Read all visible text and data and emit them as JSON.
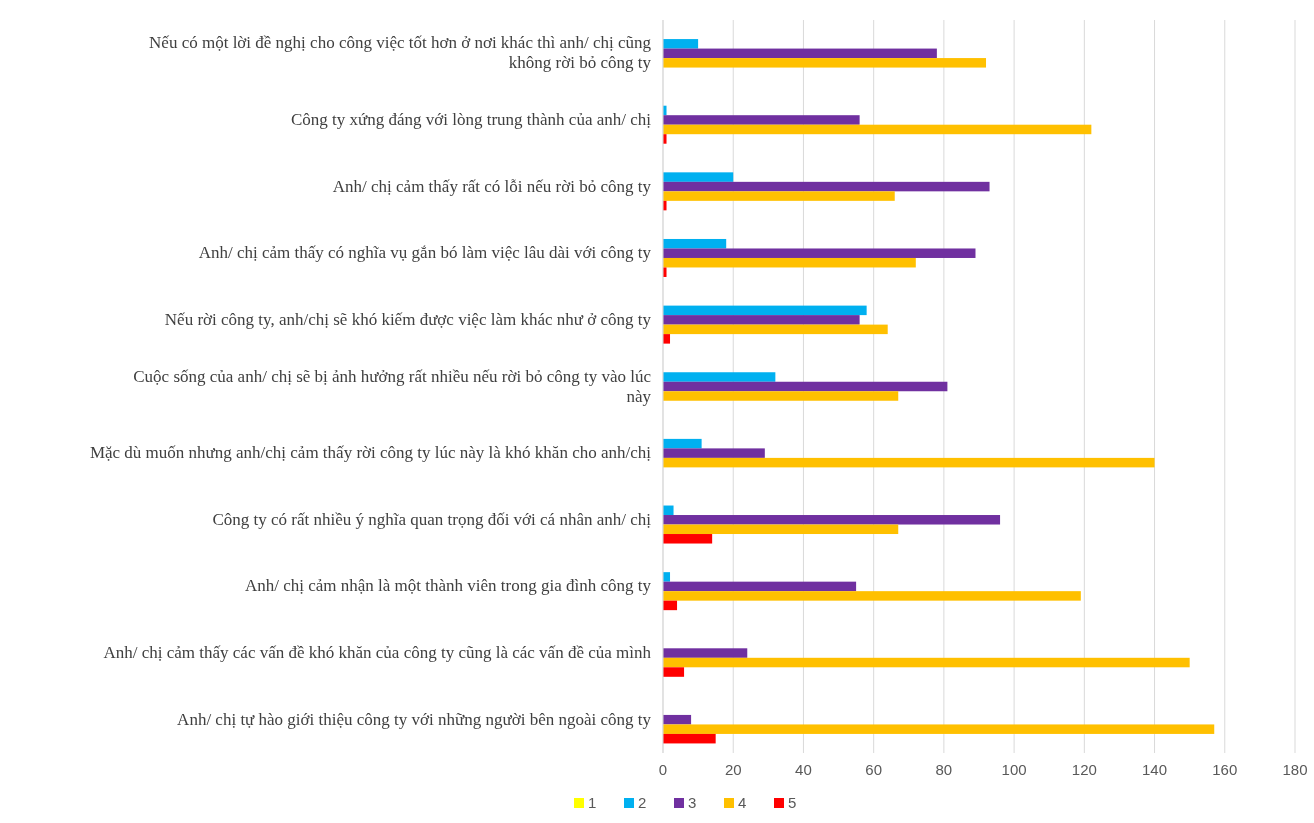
{
  "chart_data": {
    "type": "bar",
    "orientation": "horizontal",
    "categories": [
      "Nếu có một lời đề nghị cho công việc tốt hơn ở nơi khác thì anh/ chị cũng không rời bỏ công ty",
      "Công ty xứng đáng với lòng trung thành của anh/ chị",
      "Anh/ chị cảm thấy rất có lỗi nếu rời bỏ công ty",
      "Anh/ chị cảm thấy có nghĩa vụ gắn bó làm việc lâu dài với công ty",
      "Nếu rời công ty, anh/chị sẽ khó kiếm được việc làm khác như ở công ty",
      "Cuộc sống của anh/ chị sẽ bị ảnh hưởng rất nhiều nếu rời bỏ công ty vào lúc này",
      "Mặc dù muốn nhưng anh/chị cảm thấy rời công ty lúc này là khó khăn cho anh/chị",
      "Công ty có rất nhiều ý nghĩa quan trọng đối với cá nhân anh/ chị",
      "Anh/ chị cảm nhận là một thành viên trong gia đình công ty",
      "Anh/ chị cảm thấy các vấn đề khó khăn của công ty cũng là các vấn đề của mình",
      "Anh/ chị tự hào giới thiệu công ty với những người bên ngoài công ty"
    ],
    "series": [
      {
        "name": "1",
        "color": "#ffff00",
        "values": [
          0,
          0,
          0,
          0,
          0,
          0,
          0,
          0,
          0,
          0,
          0
        ]
      },
      {
        "name": "2",
        "color": "#00b0f0",
        "values": [
          10,
          1,
          20,
          18,
          58,
          32,
          11,
          3,
          2,
          0,
          0
        ]
      },
      {
        "name": "3",
        "color": "#7030a0",
        "values": [
          78,
          56,
          93,
          89,
          56,
          81,
          29,
          96,
          55,
          24,
          8
        ]
      },
      {
        "name": "4",
        "color": "#ffc000",
        "values": [
          92,
          122,
          66,
          72,
          64,
          67,
          140,
          67,
          119,
          150,
          157
        ]
      },
      {
        "name": "5",
        "color": "#ff0000",
        "values": [
          0,
          1,
          1,
          1,
          2,
          0,
          0,
          14,
          4,
          6,
          15
        ]
      }
    ],
    "xlim": [
      0,
      180
    ],
    "xticks": [
      0,
      20,
      40,
      60,
      80,
      100,
      120,
      140,
      160,
      180
    ],
    "grid": "x",
    "legend": "bottom"
  }
}
